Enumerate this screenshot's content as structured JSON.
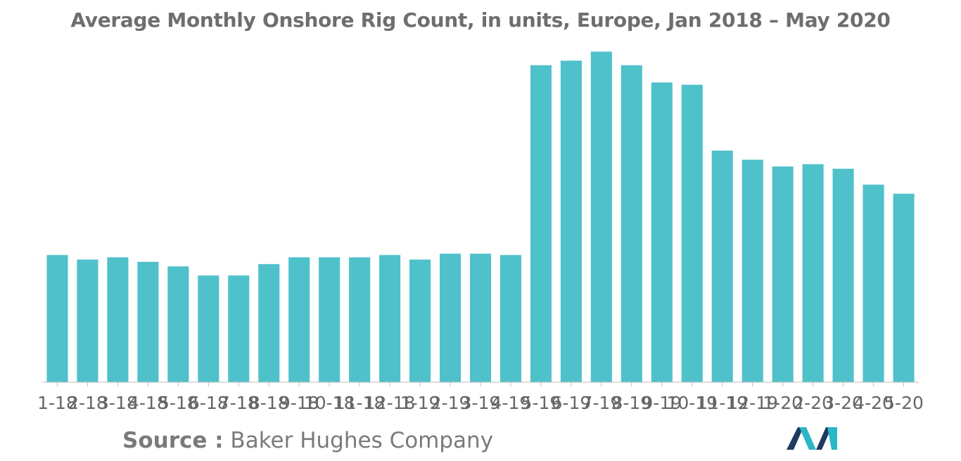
{
  "chart_data": {
    "type": "bar",
    "title": "Average Monthly Onshore Rig Count, in units, Europe, Jan 2018 – May 2020",
    "xlabel": "",
    "ylabel": "",
    "grid": false,
    "legend": "none",
    "ylim": [
      0,
      73
    ],
    "color": "#4fc1ca",
    "categories": [
      "1-18",
      "2-18",
      "3-18",
      "4-18",
      "5-18",
      "6-18",
      "7-18",
      "8-18",
      "9-18",
      "10-18",
      "11-18",
      "12-18",
      "1-19",
      "2-19",
      "3-19",
      "4-19",
      "5-19",
      "6-19",
      "7-19",
      "8-19",
      "9-19",
      "10-19",
      "11-19",
      "12-19",
      "1-20",
      "2-20",
      "3-20",
      "4-20",
      "5-20"
    ],
    "values": [
      28,
      27,
      27.5,
      26.5,
      25.5,
      23.5,
      23.5,
      26,
      27.5,
      27.5,
      27.5,
      28,
      27,
      28.3,
      28.3,
      28,
      69.8,
      70.8,
      72.8,
      69.8,
      66,
      65.5,
      51,
      49,
      47.5,
      48,
      47,
      43.5,
      41.5
    ]
  },
  "source": {
    "label": "Source :",
    "text": " Baker Hughes Company"
  },
  "logo": {
    "icon": "mordor-intelligence-logo",
    "colors": [
      "#1e3a5f",
      "#2bb5c8"
    ]
  }
}
